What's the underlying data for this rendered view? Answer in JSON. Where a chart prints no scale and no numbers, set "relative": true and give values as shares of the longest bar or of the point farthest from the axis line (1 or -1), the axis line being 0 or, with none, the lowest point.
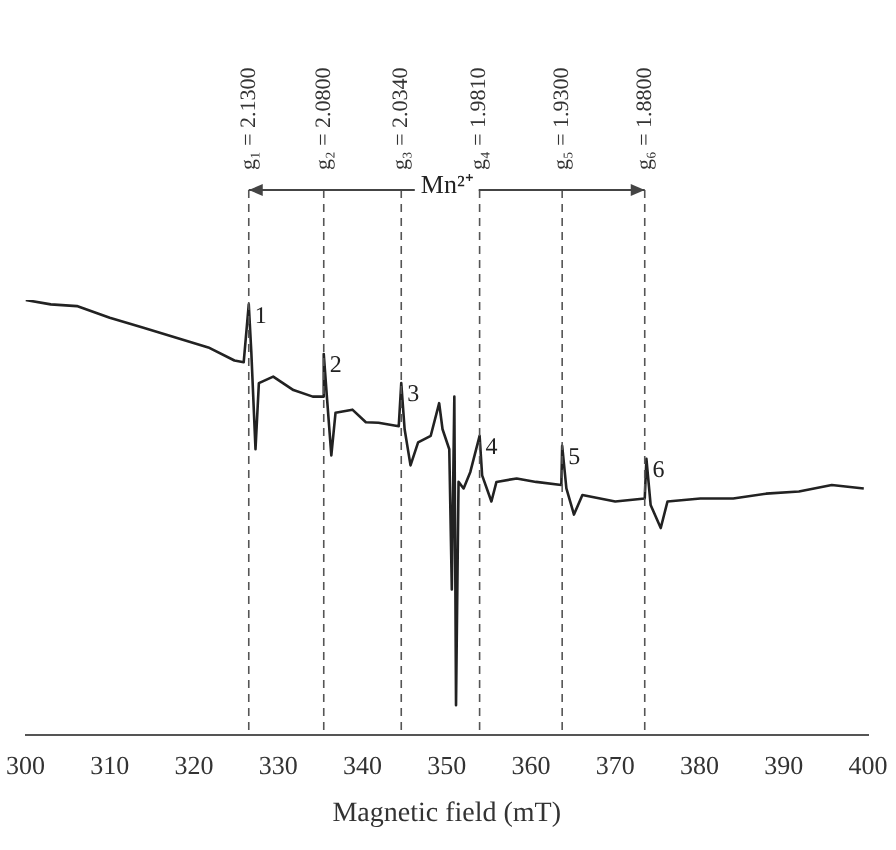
{
  "chart_data": {
    "type": "line",
    "relative": true,
    "xlabel": "Magnetic field (mT)",
    "xlim": [
      300,
      400
    ],
    "xticks": [
      300,
      310,
      320,
      330,
      340,
      350,
      360,
      370,
      380,
      390,
      400
    ],
    "grid": false,
    "legend": false,
    "marker": "none",
    "line_style": "solid",
    "series": [
      {
        "color": "#222222",
        "x": [
          300,
          303.0,
          306.1,
          310.0,
          313.9,
          317.8,
          321.7,
          324.8,
          325.9,
          326.5,
          326.8,
          327.3,
          327.7,
          329.4,
          331.8,
          334.1,
          335.2,
          335.4,
          335.8,
          336.3,
          336.8,
          338.8,
          340.4,
          341.9,
          344.3,
          344.6,
          345.0,
          345.7,
          346.6,
          348.1,
          349.1,
          349.5,
          350.3,
          350.6,
          350.9,
          351.1,
          351.4,
          352.0,
          352.8,
          353.9,
          354.2,
          355.3,
          355.9,
          358.3,
          360.6,
          363.6,
          363.7,
          364.2,
          365.1,
          366.1,
          370.0,
          373.5,
          373.7,
          374.2,
          375.4,
          376.2,
          380.1,
          384.0,
          387.9,
          391.8,
          395.7,
          399.5
        ],
        "values": [
          1.0,
          0.99,
          0.986,
          0.959,
          0.937,
          0.914,
          0.891,
          0.861,
          0.857,
          0.99,
          0.882,
          0.657,
          0.809,
          0.824,
          0.793,
          0.778,
          0.778,
          0.876,
          0.771,
          0.643,
          0.741,
          0.748,
          0.719,
          0.718,
          0.71,
          0.809,
          0.703,
          0.62,
          0.673,
          0.688,
          0.763,
          0.703,
          0.657,
          0.335,
          0.778,
          0.069,
          0.582,
          0.567,
          0.605,
          0.688,
          0.597,
          0.537,
          0.582,
          0.59,
          0.582,
          0.575,
          0.665,
          0.567,
          0.507,
          0.552,
          0.537,
          0.544,
          0.635,
          0.529,
          0.476,
          0.537,
          0.544,
          0.544,
          0.555,
          0.56,
          0.575,
          0.567
        ]
      }
    ],
    "ref_lines": [
      {
        "axis": "x",
        "value": 326.5,
        "line_style": "dashed"
      },
      {
        "axis": "x",
        "value": 335.4,
        "line_style": "dashed"
      },
      {
        "axis": "x",
        "value": 344.6,
        "line_style": "dashed"
      },
      {
        "axis": "x",
        "value": 353.9,
        "line_style": "dashed"
      },
      {
        "axis": "x",
        "value": 363.7,
        "line_style": "dashed"
      },
      {
        "axis": "x",
        "value": 373.5,
        "line_style": "dashed"
      }
    ],
    "annotations": [
      "g₁ = 2.1300",
      "g₂ = 2.0800",
      "g₃ = 2.0340",
      "g₄ = 1.9810",
      "g₅ = 1.9300",
      "g₆ = 1.8800",
      "Mn²⁺",
      {
        "text": "1",
        "x": 326.5,
        "y": 0.99
      },
      {
        "text": "2",
        "x": 335.4,
        "y": 0.876
      },
      {
        "text": "3",
        "x": 344.6,
        "y": 0.809
      },
      {
        "text": "4",
        "x": 353.9,
        "y": 0.688
      },
      {
        "text": "5",
        "x": 363.7,
        "y": 0.665
      },
      {
        "text": "6",
        "x": 373.7,
        "y": 0.635
      }
    ]
  }
}
